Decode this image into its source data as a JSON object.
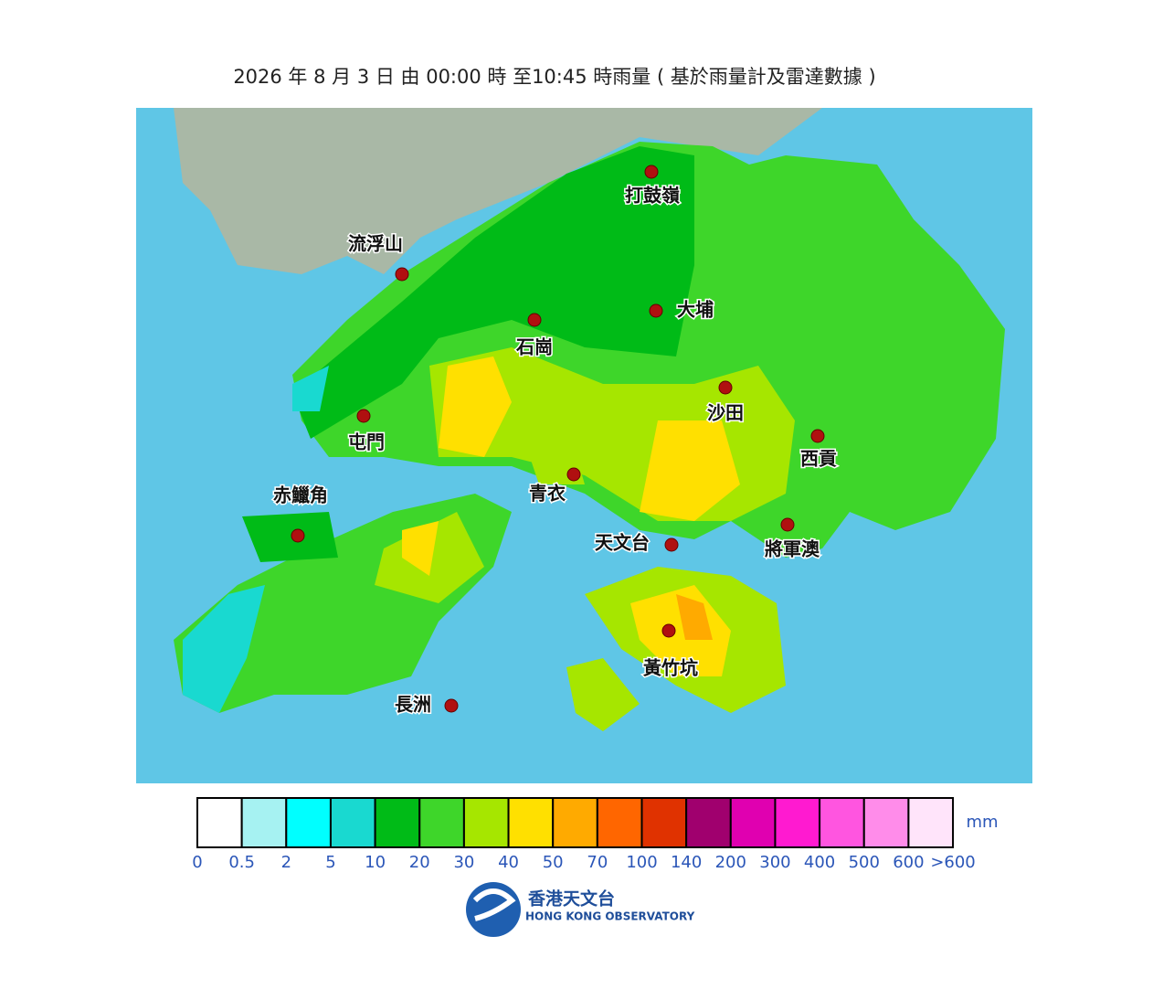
{
  "subtitle": "2026 年  8 月 3  日  由 00:00  時 至10:45  時雨量 ( 基於雨量計及雷達數據 )",
  "stations": [
    "打鼓嶺",
    "流浮山",
    "大埔",
    "石崗",
    "沙田",
    "屯門",
    "西貢",
    "青衣",
    "赤鱲角",
    "將軍澳",
    "天文台",
    "黃竹坑",
    "長洲"
  ],
  "legend": {
    "colors": [
      "#ffffff",
      "#a6f2f2",
      "#00ffff",
      "#19d9d0",
      "#00bb17",
      "#3ed62a",
      "#a6e600",
      "#ffe000",
      "#ffaa00",
      "#ff6600",
      "#e03200",
      "#a0006e",
      "#e000b0",
      "#ff1ad0",
      "#ff55e0",
      "#ff8cea",
      "#ffe4fa"
    ],
    "labels": [
      "0",
      "0.5",
      "2",
      "5",
      "10",
      "20",
      "30",
      "40",
      "50",
      "70",
      "100",
      "140",
      "200",
      "300",
      "400",
      "500",
      "600",
      ">600"
    ],
    "unit": "mm"
  },
  "logo": {
    "chinese": "香港天文台",
    "english": "HONG KONG OBSERVATORY"
  }
}
